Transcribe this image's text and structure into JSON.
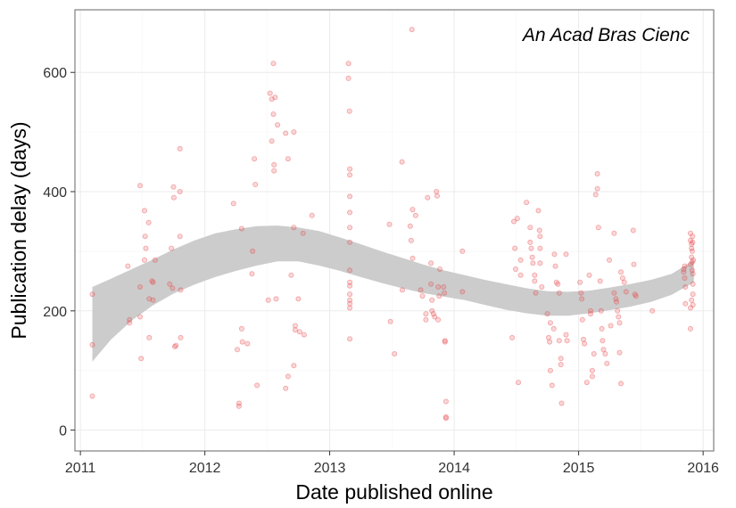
{
  "chart_data": {
    "type": "scatter",
    "title": "",
    "annotation": "An Acad Bras Cienc",
    "xlabel": "Date published online",
    "ylabel": "Publication delay (days)",
    "x_ticks": [
      "2011",
      "2012",
      "2013",
      "2014",
      "2015",
      "2016"
    ],
    "y_ticks": [
      "0",
      "200",
      "400",
      "600"
    ],
    "xlim": [
      "2010-12-16",
      "2016-02-01"
    ],
    "ylim": [
      -35,
      705
    ],
    "grid": true,
    "legend": "none",
    "colors": {
      "points": "#e8474c",
      "band": "#cccccc",
      "panel_border": "#7f7f7f",
      "grid_major": "#ebebeb",
      "grid_minor": "#f5f5f5"
    },
    "series": [
      {
        "points": [
          [
            "2011-02-05",
            57
          ],
          [
            "2011-02-05",
            143
          ],
          [
            "2011-02-05",
            228
          ],
          [
            "2011-05-20",
            275
          ],
          [
            "2011-05-25",
            185
          ],
          [
            "2011-05-25",
            180
          ],
          [
            "2011-06-25",
            410
          ],
          [
            "2011-06-25",
            240
          ],
          [
            "2011-06-25",
            190
          ],
          [
            "2011-06-28",
            120
          ],
          [
            "2011-07-08",
            368
          ],
          [
            "2011-07-10",
            325
          ],
          [
            "2011-07-12",
            305
          ],
          [
            "2011-07-08",
            285
          ],
          [
            "2011-07-20",
            348
          ],
          [
            "2011-07-22",
            220
          ],
          [
            "2011-07-22",
            155
          ],
          [
            "2011-07-30",
            250
          ],
          [
            "2011-08-02",
            218
          ],
          [
            "2011-08-02",
            248
          ],
          [
            "2011-08-08",
            285
          ],
          [
            "2011-09-20",
            245
          ],
          [
            "2011-09-25",
            305
          ],
          [
            "2011-09-28",
            238
          ],
          [
            "2011-10-01",
            408
          ],
          [
            "2011-10-02",
            390
          ],
          [
            "2011-10-05",
            140
          ],
          [
            "2011-10-08",
            142
          ],
          [
            "2011-10-20",
            472
          ],
          [
            "2011-10-20",
            400
          ],
          [
            "2011-10-20",
            325
          ],
          [
            "2011-10-22",
            235
          ],
          [
            "2011-10-22",
            155
          ],
          [
            "2012-03-25",
            380
          ],
          [
            "2012-04-05",
            135
          ],
          [
            "2012-04-10",
            40
          ],
          [
            "2012-04-10",
            45
          ],
          [
            "2012-04-18",
            338
          ],
          [
            "2012-04-18",
            170
          ],
          [
            "2012-04-20",
            148
          ],
          [
            "2012-05-05",
            145
          ],
          [
            "2012-05-18",
            262
          ],
          [
            "2012-05-20",
            300
          ],
          [
            "2012-05-25",
            455
          ],
          [
            "2012-05-28",
            412
          ],
          [
            "2012-06-02",
            75
          ],
          [
            "2012-07-05",
            218
          ],
          [
            "2012-07-10",
            565
          ],
          [
            "2012-07-15",
            555
          ],
          [
            "2012-07-15",
            485
          ],
          [
            "2012-07-20",
            615
          ],
          [
            "2012-07-20",
            530
          ],
          [
            "2012-07-22",
            445
          ],
          [
            "2012-07-22",
            435
          ],
          [
            "2012-07-25",
            558
          ],
          [
            "2012-07-28",
            220
          ],
          [
            "2012-08-01",
            512
          ],
          [
            "2012-08-25",
            498
          ],
          [
            "2012-09-01",
            455
          ],
          [
            "2012-09-01",
            90
          ],
          [
            "2012-08-25",
            70
          ],
          [
            "2012-09-10",
            260
          ],
          [
            "2012-09-18",
            500
          ],
          [
            "2012-09-18",
            340
          ],
          [
            "2012-09-18",
            108
          ],
          [
            "2012-09-22",
            175
          ],
          [
            "2012-09-22",
            168
          ],
          [
            "2012-10-01",
            220
          ],
          [
            "2012-10-05",
            165
          ],
          [
            "2012-10-15",
            330
          ],
          [
            "2012-10-18",
            160
          ],
          [
            "2012-11-10",
            360
          ],
          [
            "2013-02-25",
            615
          ],
          [
            "2013-02-25",
            590
          ],
          [
            "2013-02-28",
            535
          ],
          [
            "2013-03-01",
            438
          ],
          [
            "2013-03-01",
            428
          ],
          [
            "2013-03-01",
            392
          ],
          [
            "2013-03-01",
            365
          ],
          [
            "2013-03-01",
            340
          ],
          [
            "2013-03-01",
            315
          ],
          [
            "2013-03-01",
            268
          ],
          [
            "2013-03-01",
            248
          ],
          [
            "2013-03-01",
            242
          ],
          [
            "2013-03-01",
            228
          ],
          [
            "2013-03-01",
            218
          ],
          [
            "2013-03-01",
            212
          ],
          [
            "2013-03-01",
            205
          ],
          [
            "2013-03-01",
            153
          ],
          [
            "2013-06-25",
            345
          ],
          [
            "2013-06-28",
            182
          ],
          [
            "2013-07-10",
            128
          ],
          [
            "2013-08-01",
            450
          ],
          [
            "2013-08-02",
            235
          ],
          [
            "2013-08-25",
            342
          ],
          [
            "2013-08-28",
            318
          ],
          [
            "2013-09-01",
            370
          ],
          [
            "2013-09-01",
            288
          ],
          [
            "2013-08-30",
            672
          ],
          [
            "2013-09-10",
            360
          ],
          [
            "2013-09-25",
            235
          ],
          [
            "2013-09-30",
            225
          ],
          [
            "2013-10-10",
            195
          ],
          [
            "2013-10-10",
            185
          ],
          [
            "2013-10-15",
            390
          ],
          [
            "2013-10-25",
            280
          ],
          [
            "2013-10-25",
            245
          ],
          [
            "2013-10-28",
            218
          ],
          [
            "2013-10-28",
            200
          ],
          [
            "2013-11-01",
            195
          ],
          [
            "2013-11-05",
            190
          ],
          [
            "2013-11-10",
            400
          ],
          [
            "2013-11-12",
            393
          ],
          [
            "2013-11-15",
            240
          ],
          [
            "2013-11-18",
            225
          ],
          [
            "2013-11-15",
            185
          ],
          [
            "2013-11-20",
            270
          ],
          [
            "2013-12-01",
            240
          ],
          [
            "2013-12-03",
            230
          ],
          [
            "2013-12-05",
            148
          ],
          [
            "2013-12-05",
            150
          ],
          [
            "2013-12-08",
            48
          ],
          [
            "2013-12-08",
            20
          ],
          [
            "2013-12-08",
            22
          ],
          [
            "2014-01-25",
            300
          ],
          [
            "2014-01-25",
            232
          ],
          [
            "2014-06-20",
            155
          ],
          [
            "2014-06-25",
            350
          ],
          [
            "2014-06-28",
            305
          ],
          [
            "2014-06-30",
            270
          ],
          [
            "2014-07-05",
            355
          ],
          [
            "2014-07-08",
            80
          ],
          [
            "2014-07-15",
            285
          ],
          [
            "2014-07-15",
            260
          ],
          [
            "2014-08-01",
            382
          ],
          [
            "2014-08-12",
            340
          ],
          [
            "2014-08-12",
            315
          ],
          [
            "2014-08-15",
            305
          ],
          [
            "2014-08-18",
            290
          ],
          [
            "2014-08-20",
            280
          ],
          [
            "2014-08-25",
            260
          ],
          [
            "2014-08-25",
            250
          ],
          [
            "2014-08-28",
            230
          ],
          [
            "2014-09-05",
            368
          ],
          [
            "2014-09-08",
            335
          ],
          [
            "2014-09-10",
            325
          ],
          [
            "2014-09-10",
            305
          ],
          [
            "2014-09-10",
            280
          ],
          [
            "2014-09-15",
            240
          ],
          [
            "2014-10-01",
            195
          ],
          [
            "2014-10-05",
            155
          ],
          [
            "2014-10-08",
            148
          ],
          [
            "2014-10-10",
            100
          ],
          [
            "2014-10-15",
            75
          ],
          [
            "2014-10-10",
            180
          ],
          [
            "2014-10-20",
            170
          ],
          [
            "2014-10-22",
            295
          ],
          [
            "2014-10-25",
            275
          ],
          [
            "2014-10-28",
            248
          ],
          [
            "2014-11-01",
            245
          ],
          [
            "2014-11-05",
            230
          ],
          [
            "2014-11-05",
            150
          ],
          [
            "2014-11-10",
            120
          ],
          [
            "2014-11-10",
            110
          ],
          [
            "2014-11-12",
            45
          ],
          [
            "2014-11-25",
            295
          ],
          [
            "2014-11-25",
            160
          ],
          [
            "2014-11-28",
            150
          ],
          [
            "2015-01-05",
            248
          ],
          [
            "2015-01-08",
            230
          ],
          [
            "2015-01-10",
            220
          ],
          [
            "2015-01-12",
            185
          ],
          [
            "2015-01-15",
            152
          ],
          [
            "2015-01-18",
            145
          ],
          [
            "2015-01-25",
            80
          ],
          [
            "2015-02-01",
            260
          ],
          [
            "2015-02-05",
            200
          ],
          [
            "2015-02-05",
            195
          ],
          [
            "2015-02-10",
            100
          ],
          [
            "2015-02-10",
            90
          ],
          [
            "2015-02-15",
            128
          ],
          [
            "2015-02-20",
            395
          ],
          [
            "2015-02-25",
            430
          ],
          [
            "2015-02-25",
            405
          ],
          [
            "2015-02-28",
            340
          ],
          [
            "2015-03-05",
            250
          ],
          [
            "2015-03-08",
            200
          ],
          [
            "2015-03-10",
            170
          ],
          [
            "2015-03-12",
            150
          ],
          [
            "2015-03-15",
            135
          ],
          [
            "2015-03-20",
            128
          ],
          [
            "2015-03-25",
            112
          ],
          [
            "2015-04-01",
            285
          ],
          [
            "2015-04-05",
            175
          ],
          [
            "2015-04-15",
            330
          ],
          [
            "2015-04-15",
            230
          ],
          [
            "2015-04-20",
            220
          ],
          [
            "2015-04-22",
            215
          ],
          [
            "2015-04-25",
            200
          ],
          [
            "2015-04-28",
            190
          ],
          [
            "2015-05-01",
            180
          ],
          [
            "2015-05-01",
            130
          ],
          [
            "2015-05-05",
            78
          ],
          [
            "2015-05-05",
            265
          ],
          [
            "2015-05-10",
            255
          ],
          [
            "2015-05-15",
            248
          ],
          [
            "2015-05-20",
            232
          ],
          [
            "2015-06-10",
            335
          ],
          [
            "2015-06-12",
            278
          ],
          [
            "2015-06-15",
            228
          ],
          [
            "2015-06-18",
            225
          ],
          [
            "2015-08-05",
            200
          ],
          [
            "2015-11-05",
            270
          ],
          [
            "2015-11-05",
            265
          ],
          [
            "2015-11-08",
            275
          ],
          [
            "2015-11-08",
            255
          ],
          [
            "2015-11-10",
            240
          ],
          [
            "2015-11-10",
            212
          ],
          [
            "2015-11-25",
            330
          ],
          [
            "2015-11-25",
            318
          ],
          [
            "2015-11-28",
            312
          ],
          [
            "2015-11-28",
            305
          ],
          [
            "2015-11-30",
            300
          ],
          [
            "2015-11-28",
            290
          ],
          [
            "2015-11-30",
            282
          ],
          [
            "2015-11-25",
            278
          ],
          [
            "2015-11-30",
            268
          ],
          [
            "2015-12-02",
            262
          ],
          [
            "2015-12-02",
            228
          ],
          [
            "2015-11-28",
            218
          ],
          [
            "2015-11-25",
            205
          ],
          [
            "2015-11-25",
            170
          ],
          [
            "2015-12-01",
            325
          ],
          [
            "2015-12-01",
            315
          ],
          [
            "2015-12-03",
            285
          ],
          [
            "2015-12-02",
            245
          ],
          [
            "2015-12-02",
            210
          ]
        ]
      }
    ],
    "smooth_band": {
      "x": [
        "2011-02-05",
        "2011-04-01",
        "2011-06-01",
        "2011-08-01",
        "2011-10-01",
        "2011-12-01",
        "2012-02-01",
        "2012-04-01",
        "2012-06-01",
        "2012-08-01",
        "2012-10-01",
        "2012-12-01",
        "2013-02-01",
        "2013-04-01",
        "2013-06-01",
        "2013-08-01",
        "2013-10-01",
        "2013-12-01",
        "2014-02-01",
        "2014-04-01",
        "2014-06-01",
        "2014-08-01",
        "2014-10-01",
        "2014-12-01",
        "2015-02-01",
        "2015-04-01",
        "2015-06-01",
        "2015-08-01",
        "2015-10-01",
        "2015-12-05"
      ],
      "upper": [
        240,
        254,
        270,
        286,
        303,
        318,
        330,
        337,
        342,
        343,
        340,
        334,
        323,
        312,
        300,
        289,
        278,
        268,
        260,
        252,
        245,
        238,
        233,
        232,
        234,
        239,
        245,
        252,
        262,
        285
      ],
      "lower": [
        115,
        152,
        184,
        209,
        229,
        244,
        257,
        267,
        276,
        283,
        283,
        276,
        267,
        257,
        247,
        238,
        230,
        224,
        218,
        210,
        202,
        196,
        192,
        192,
        196,
        201,
        207,
        215,
        227,
        248
      ]
    }
  }
}
